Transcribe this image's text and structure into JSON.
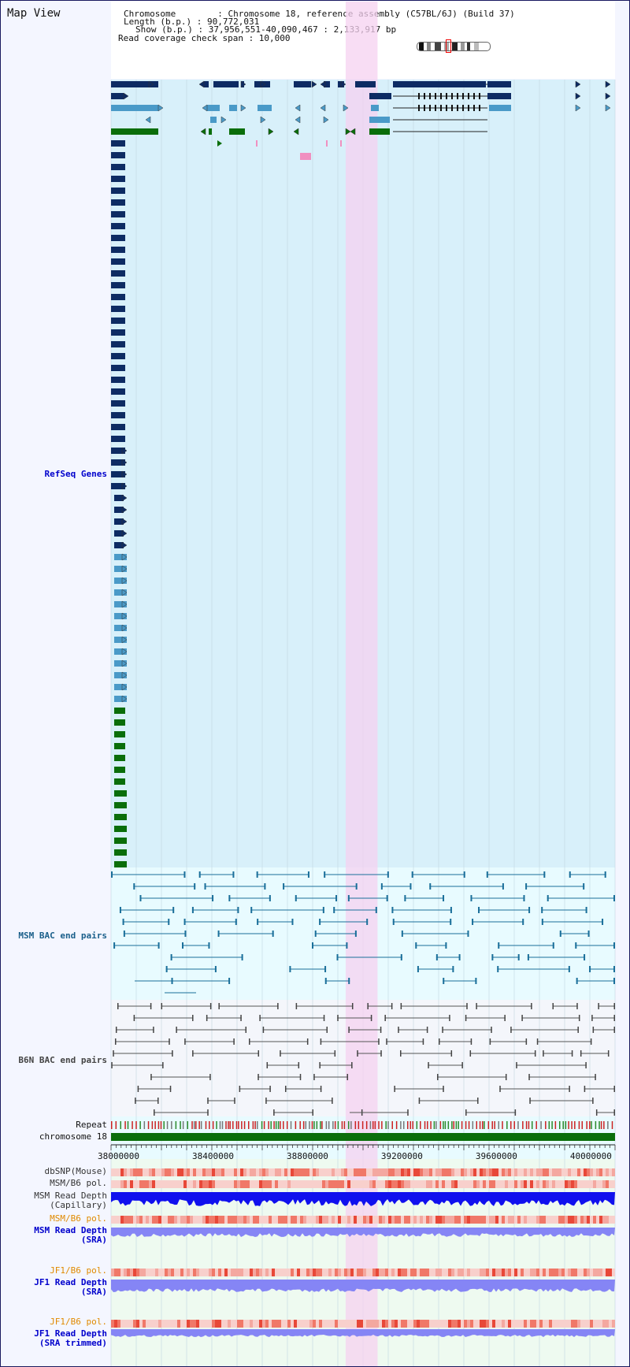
{
  "page": {
    "title": "Map View"
  },
  "header": {
    "chromosome_line": "Chromosome        : Chromosome 18, reference assembly (C57BL/6J) (Build 37)",
    "length_line": "Length (b.p.) : 90,772,031",
    "show_line": "Show (b.p.) : 37,956,551-40,090,467 : 2,133,917 bp",
    "coverage_line": "Read coverage check span : 10,000"
  },
  "tracks": {
    "refseq": {
      "label": "RefSeq Genes",
      "color": "#0000cc"
    },
    "msm_bac": {
      "label": "MSM BAC end pairs",
      "color": "#1a5f8a"
    },
    "b6n_bac": {
      "label": "B6N BAC end pairs",
      "color": "#444444"
    },
    "repeat": {
      "label": "Repeat",
      "color": "#111111"
    },
    "chromosome": {
      "label": "chromosome 18",
      "color": "#111111"
    },
    "dbsnp": {
      "label": "dbSNP(Mouse)",
      "color": "#333333"
    },
    "msm_pol": {
      "label": "MSM/B6 pol.",
      "color": "#333333"
    },
    "msm_depth_cap": {
      "label": "MSM Read Depth\n(Capillary)",
      "color": "#333333"
    },
    "msm_pol2": {
      "label": "MSM/B6 pol.",
      "color": "#e08a00"
    },
    "msm_depth_sra": {
      "label": "MSM Read Depth\n(SRA)",
      "color": "#0000cc"
    },
    "jf1_pol": {
      "label": "JF1/B6 pol.",
      "color": "#e08a00"
    },
    "jf1_depth_sra": {
      "label": "JF1 Read Depth\n(SRA)",
      "color": "#0000cc"
    },
    "jf1_pol2": {
      "label": "JF1/B6 pol.",
      "color": "#e08a00"
    },
    "jf1_depth_trim": {
      "label": "JF1 Read Depth\n(SRA trimmed)",
      "color": "#0000cc"
    }
  },
  "axis": {
    "start_bp": 37956551,
    "end_bp": 40090467,
    "ticks": [
      "38000000",
      "38400000",
      "38800000",
      "39200000",
      "39600000",
      "40000000"
    ],
    "highlight_bp": [
      38950000,
      39085000
    ]
  },
  "colors": {
    "gene_dark": "#0d2b63",
    "gene_light": "#4a9ac8",
    "gene_green": "#0a6e0a",
    "highlight": "#f5d2f0",
    "track_bg": "#d8f0fa",
    "repeat_red": "#cc2222",
    "depth_blue": "#1010ee",
    "depth_light": "#8585f5"
  }
}
